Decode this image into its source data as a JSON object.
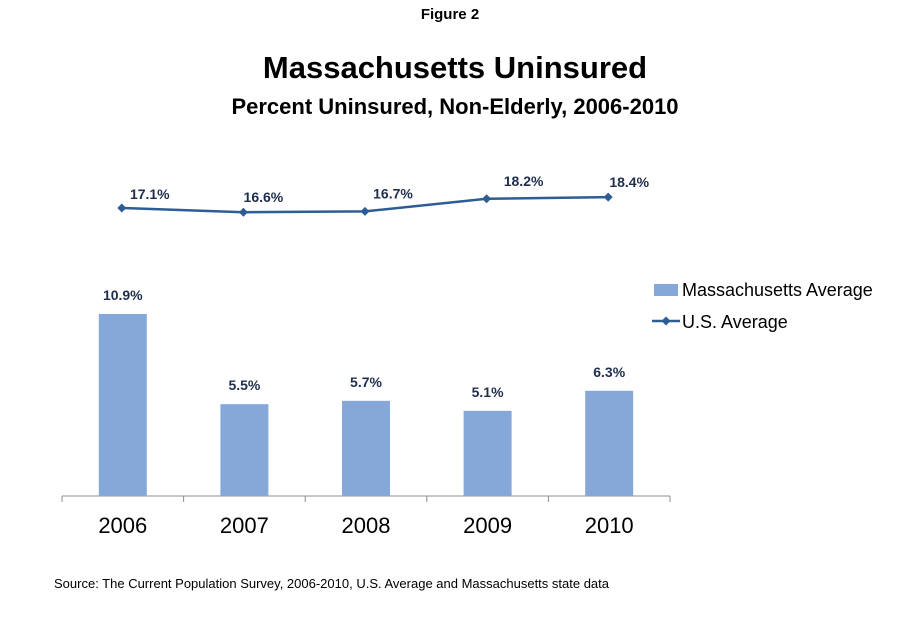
{
  "figure_label": "Figure 2",
  "source": "Source: The Current Population Survey, 2006-2010, U.S. Average and Massachusetts state data",
  "colors": {
    "bar": "#86a8d9",
    "line": "#2e5c95",
    "label": "#1f2e4d"
  },
  "chart_data": {
    "type": "bar",
    "title": "Massachusetts Uninsured",
    "subtitle": "Percent Uninsured, Non-Elderly, 2006-2010",
    "categories": [
      "2006",
      "2007",
      "2008",
      "2009",
      "2010"
    ],
    "series": [
      {
        "name": "Massachusetts Average",
        "type": "bar",
        "values": [
          10.9,
          5.5,
          5.7,
          5.1,
          6.3
        ],
        "labels": [
          "10.9%",
          "5.5%",
          "5.7%",
          "5.1%",
          "6.3%"
        ]
      },
      {
        "name": "U.S. Average",
        "type": "line",
        "values": [
          17.1,
          16.6,
          16.7,
          18.2,
          18.4
        ],
        "labels": [
          "17.1%",
          "16.6%",
          "16.7%",
          "18.2%",
          "18.4%"
        ]
      }
    ],
    "ylim": [
      0,
      19
    ],
    "grid": false,
    "legend_position": "right"
  }
}
